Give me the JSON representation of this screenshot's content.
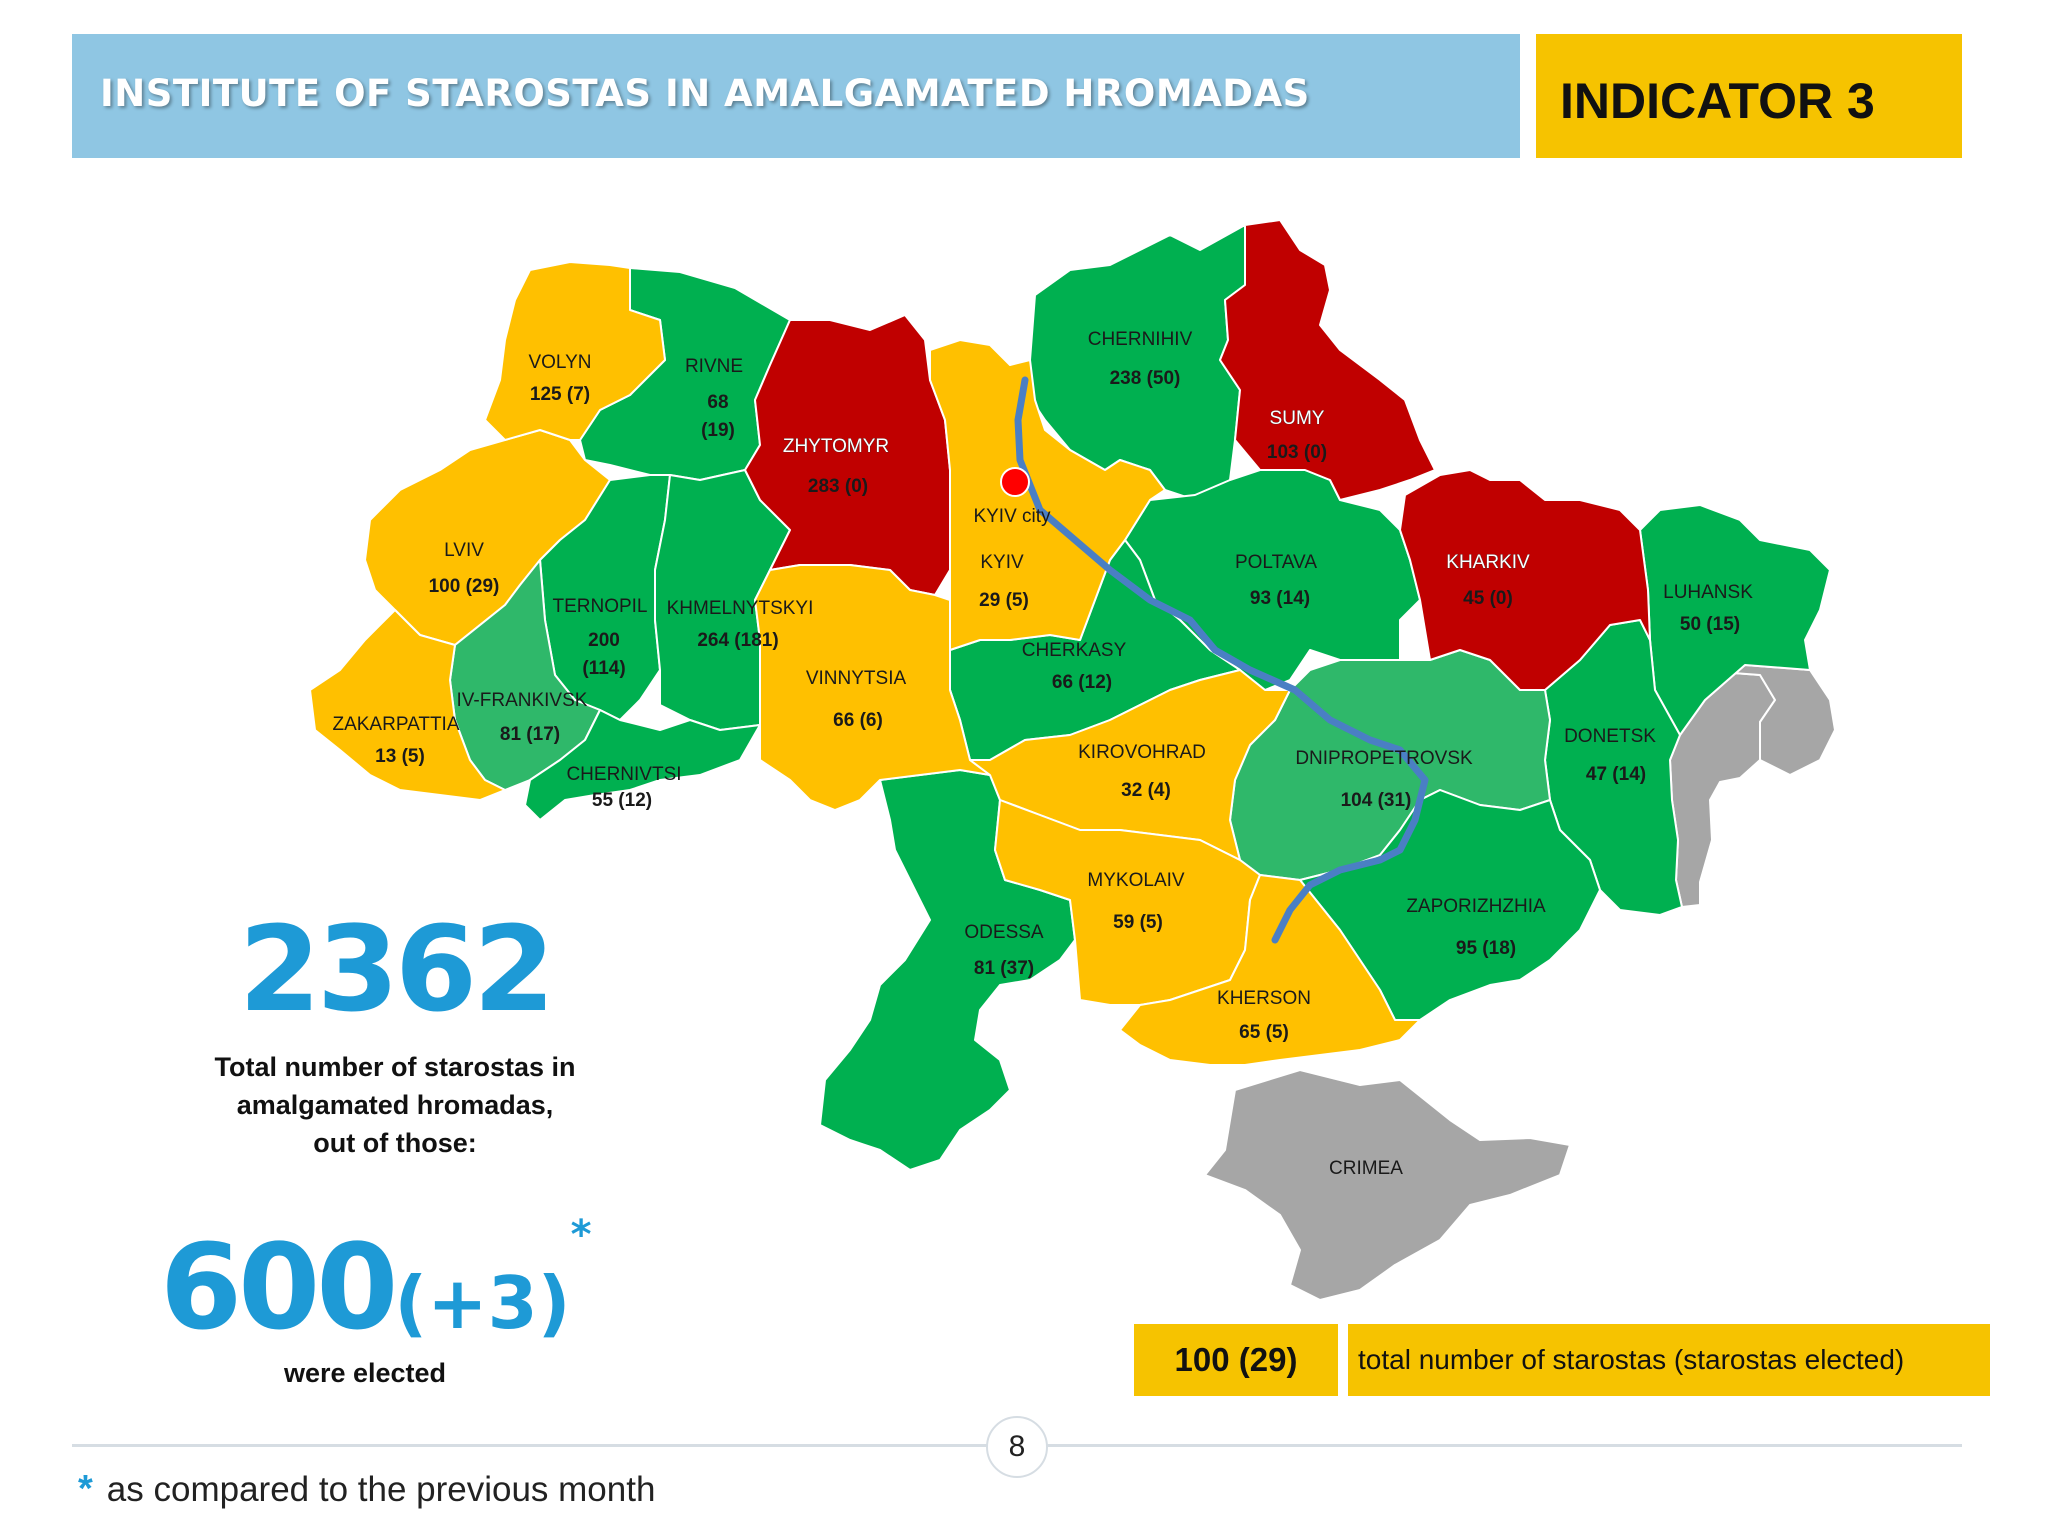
{
  "header": {
    "title": "INSTITUTE OF STAROSTAS IN AMALGAMATED HROMADAS",
    "indicator": "INDICATOR 3"
  },
  "colors": {
    "green": "#00b050",
    "light_green": "#2fb86a",
    "red": "#c00000",
    "yellow": "#ffc000",
    "gray": "#a6a6a6",
    "accent_blue": "#1e9ad6",
    "header_blue": "#8fc6e3",
    "indicator_yellow": "#f6c300"
  },
  "regions": {
    "volyn": {
      "name": "VOLYN",
      "value": "125 (7)"
    },
    "rivne": {
      "name": "RIVNE",
      "value1": "68",
      "value2": "(19)"
    },
    "zhytomyr": {
      "name": "ZHYTOMYR",
      "value": "283 (0)"
    },
    "chernihiv": {
      "name": "CHERNIHIV",
      "value": "238 (50)"
    },
    "sumy": {
      "name": "SUMY",
      "value": "103 (0)"
    },
    "kyiv_city": {
      "name": "KYIV city"
    },
    "kyiv": {
      "name": "KYIV",
      "value": "29 (5)"
    },
    "lviv": {
      "name": "LVIV",
      "value": "100 (29)"
    },
    "ternopil": {
      "name": "TERNOPIL",
      "value1": "200",
      "value2": "(114)"
    },
    "khmelnytskyi": {
      "name": "KHMELNYTSKYI",
      "value": "264 (181)"
    },
    "poltava": {
      "name": "POLTAVA",
      "value": "93 (14)"
    },
    "kharkiv": {
      "name": "KHARKIV",
      "value": "45 (0)"
    },
    "luhansk": {
      "name": "LUHANSK",
      "value": "50 (15)"
    },
    "vinnytsia": {
      "name": "VINNYTSIA",
      "value": "66 (6)"
    },
    "cherkasy": {
      "name": "CHERKASY",
      "value": "66 (12)"
    },
    "iv_frankivsk": {
      "name": "IV-FRANKIVSK",
      "value": "81 (17)"
    },
    "zakarpattia": {
      "name": "ZAKARPATTIA",
      "value": "13 (5)"
    },
    "chernivtsi": {
      "name": "CHERNIVTSI",
      "value": "55 (12)"
    },
    "kirovohrad": {
      "name": "KIROVOHRAD",
      "value": "32 (4)"
    },
    "dnipropetrovsk": {
      "name": "DNIPROPETROVSK",
      "value": "104 (31)"
    },
    "donetsk": {
      "name": "DONETSK",
      "value": "47 (14)"
    },
    "mykolaiv": {
      "name": "MYKOLAIV",
      "value": "59 (5)"
    },
    "odessa": {
      "name": "ODESSA",
      "value": "81 (37)"
    },
    "zaporizhzhia": {
      "name": "ZAPORIZHZHIA",
      "value": "95 (18)"
    },
    "kherson": {
      "name": "KHERSON",
      "value": "65 (5)"
    },
    "crimea": {
      "name": "CRIMEA"
    }
  },
  "stats": {
    "total_number": "2362",
    "total_caption_1": "Total number of starostas in",
    "total_caption_2": "amalgamated hromadas,",
    "total_caption_3": "out of those:",
    "elected_number": "600",
    "elected_delta": "(+3)",
    "elected_mark": "*",
    "elected_caption": "were elected"
  },
  "legend": {
    "sample_value": "100 (29)",
    "description": "total number of starostas (starostas elected)"
  },
  "page_number": "8",
  "footnote": {
    "mark": "*",
    "text": "as compared to the previous month"
  }
}
